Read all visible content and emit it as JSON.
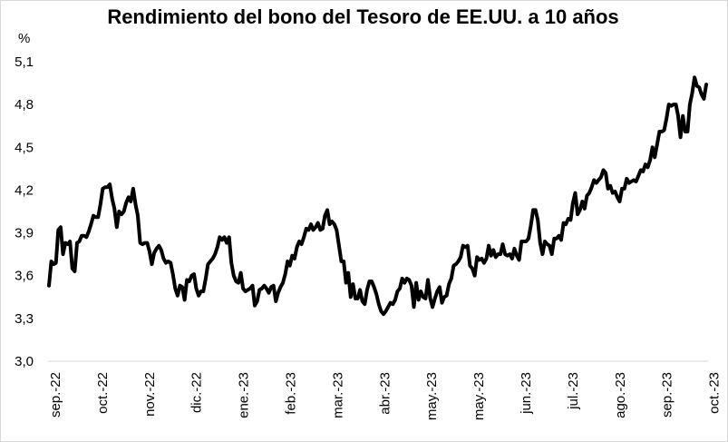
{
  "chart_data": {
    "type": "line",
    "title": "Rendimiento del bono del Tesoro de EE.UU. a 10 años",
    "ylabel": "%",
    "xlabel": "",
    "ylim": [
      3.0,
      5.1
    ],
    "yticks": [
      "3,0",
      "3,3",
      "3,6",
      "3,9",
      "4,2",
      "4,5",
      "4,8",
      "5,1"
    ],
    "xticks": [
      "sep.-22",
      "oct.-22",
      "nov.-22",
      "dic.-22",
      "ene.-23",
      "feb.-23",
      "mar.-23",
      "abr.-23",
      "may.-23",
      "may.-23",
      "jun.-23",
      "jul.-23",
      "ago.-23",
      "sep.-23",
      "oct.-23"
    ],
    "grid": false,
    "legend": "none",
    "line_color": "#000000",
    "series": [
      {
        "values": [
          3.53,
          3.7,
          3.68,
          3.69,
          3.92,
          3.94,
          3.75,
          3.83,
          3.82,
          3.84,
          3.65,
          3.63,
          3.83,
          3.84,
          3.88,
          3.88,
          3.87,
          3.91,
          3.96,
          4.02,
          4.01,
          4.01,
          4.1,
          4.21,
          4.22,
          4.22,
          4.24,
          4.14,
          4.07,
          3.94,
          4.05,
          4.03,
          4.05,
          4.11,
          4.15,
          4.12,
          4.21,
          4.1,
          4.02,
          3.83,
          3.82,
          3.83,
          3.83,
          3.77,
          3.68,
          3.76,
          3.79,
          3.81,
          3.78,
          3.72,
          3.69,
          3.7,
          3.69,
          3.61,
          3.51,
          3.46,
          3.53,
          3.52,
          3.43,
          3.57,
          3.56,
          3.6,
          3.61,
          3.51,
          3.46,
          3.49,
          3.49,
          3.58,
          3.68,
          3.7,
          3.72,
          3.75,
          3.8,
          3.87,
          3.85,
          3.87,
          3.83,
          3.87,
          3.69,
          3.6,
          3.56,
          3.55,
          3.62,
          3.51,
          3.49,
          3.5,
          3.51,
          3.53,
          3.39,
          3.42,
          3.5,
          3.51,
          3.53,
          3.51,
          3.48,
          3.52,
          3.53,
          3.42,
          3.48,
          3.52,
          3.55,
          3.61,
          3.7,
          3.67,
          3.74,
          3.72,
          3.8,
          3.84,
          3.82,
          3.87,
          3.93,
          3.92,
          3.96,
          3.92,
          3.94,
          3.97,
          3.92,
          3.93,
          4.02,
          4.06,
          3.96,
          3.98,
          3.96,
          3.92,
          3.81,
          3.7,
          3.7,
          3.55,
          3.62,
          3.45,
          3.54,
          3.44,
          3.44,
          3.5,
          3.42,
          3.4,
          3.5,
          3.56,
          3.56,
          3.52,
          3.47,
          3.4,
          3.35,
          3.33,
          3.35,
          3.38,
          3.41,
          3.4,
          3.43,
          3.49,
          3.51,
          3.58,
          3.55,
          3.58,
          3.57,
          3.53,
          3.38,
          3.55,
          3.43,
          3.49,
          3.45,
          3.44,
          3.57,
          3.44,
          3.38,
          3.44,
          3.49,
          3.52,
          3.41,
          3.45,
          3.46,
          3.54,
          3.58,
          3.67,
          3.68,
          3.7,
          3.73,
          3.81,
          3.8,
          3.81,
          3.67,
          3.65,
          3.6,
          3.73,
          3.71,
          3.72,
          3.69,
          3.72,
          3.81,
          3.74,
          3.78,
          3.73,
          3.75,
          3.75,
          3.82,
          3.75,
          3.74,
          3.75,
          3.72,
          3.79,
          3.74,
          3.71,
          3.84,
          3.84,
          3.84,
          3.86,
          3.95,
          4.06,
          4.06,
          3.99,
          3.83,
          3.75,
          3.84,
          3.82,
          3.81,
          3.75,
          3.86,
          3.86,
          3.88,
          3.85,
          3.97,
          3.96,
          4.0,
          3.99,
          4.11,
          4.18,
          4.03,
          4.06,
          4.12,
          4.07,
          4.16,
          4.18,
          4.22,
          4.27,
          4.25,
          4.27,
          4.29,
          4.34,
          4.32,
          4.21,
          4.23,
          4.18,
          4.19,
          4.15,
          4.12,
          4.21,
          4.21,
          4.28,
          4.25,
          4.26,
          4.27,
          4.26,
          4.3,
          4.34,
          4.33,
          4.38,
          4.36,
          4.41,
          4.5,
          4.43,
          4.52,
          4.61,
          4.61,
          4.62,
          4.7,
          4.8,
          4.79,
          4.8,
          4.8,
          4.72,
          4.57,
          4.72,
          4.61,
          4.61,
          4.8,
          4.88,
          4.99,
          4.93,
          4.92,
          4.87,
          4.84,
          4.94
        ]
      }
    ]
  }
}
